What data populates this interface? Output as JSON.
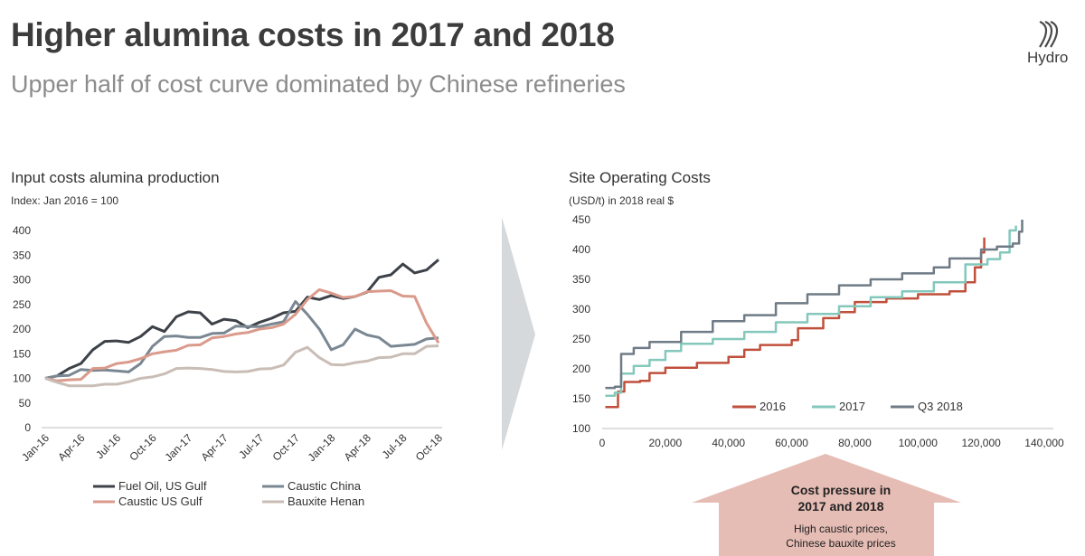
{
  "header": {
    "title": "Higher alumina costs in 2017 and 2018",
    "subtitle": "Upper half of cost curve dominated by Chinese refineries",
    "logo_text": "Hydro"
  },
  "left_chart": {
    "title": "Input costs alumina production",
    "subtitle": "Index: Jan 2016 = 100"
  },
  "right_chart": {
    "title": "Site Operating Costs",
    "subtitle": "(USD/t) in 2018 real $"
  },
  "callout": {
    "heading_line1": "Cost pressure in",
    "heading_line2": "2017 and 2018",
    "body_line1": "High caustic prices,",
    "body_line2": "Chinese bauxite prices",
    "color": "#e6bdb5"
  },
  "chart_data": [
    {
      "type": "line",
      "title": "Input costs alumina production",
      "subtitle": "Index: Jan 2016 = 100",
      "ylim": [
        0,
        400
      ],
      "yticks": [
        0,
        50,
        100,
        150,
        200,
        250,
        300,
        350,
        400
      ],
      "x_count": 34,
      "x_tick_labels": [
        {
          "i": 0,
          "label": "Jan-16"
        },
        {
          "i": 3,
          "label": "Apr-16"
        },
        {
          "i": 6,
          "label": "Jul-16"
        },
        {
          "i": 9,
          "label": "Oct-16"
        },
        {
          "i": 12,
          "label": "Jan-17"
        },
        {
          "i": 15,
          "label": "Apr-17"
        },
        {
          "i": 18,
          "label": "Jul-17"
        },
        {
          "i": 21,
          "label": "Oct-17"
        },
        {
          "i": 24,
          "label": "Jan-18"
        },
        {
          "i": 27,
          "label": "Apr-18"
        },
        {
          "i": 30,
          "label": "Jul-18"
        },
        {
          "i": 33,
          "label": "Oct-18"
        }
      ],
      "legend_position": "bottom",
      "series": [
        {
          "name": "Fuel Oil, US Gulf",
          "color": "#3d4249",
          "values": [
            100,
            105,
            120,
            130,
            158,
            175,
            176,
            173,
            185,
            205,
            195,
            225,
            235,
            233,
            210,
            220,
            217,
            203,
            214,
            222,
            233,
            236,
            265,
            260,
            268,
            262,
            266,
            275,
            305,
            310,
            332,
            314,
            320,
            341
          ]
        },
        {
          "name": "Caustic China",
          "color": "#7a8792",
          "values": [
            100,
            105,
            106,
            118,
            116,
            117,
            115,
            113,
            130,
            165,
            185,
            186,
            183,
            183,
            191,
            192,
            206,
            205,
            205,
            210,
            215,
            256,
            230,
            200,
            158,
            168,
            200,
            188,
            183,
            165,
            167,
            169,
            180,
            182
          ]
        },
        {
          "name": "Caustic US Gulf",
          "color": "#da9a8c",
          "values": [
            100,
            95,
            97,
            98,
            120,
            121,
            130,
            133,
            140,
            150,
            154,
            157,
            167,
            168,
            182,
            185,
            190,
            193,
            200,
            203,
            210,
            230,
            260,
            280,
            273,
            264,
            266,
            276,
            277,
            278,
            267,
            266,
            212,
            172
          ]
        },
        {
          "name": "Bauxite Henan",
          "color": "#c9bdb6",
          "values": [
            100,
            92,
            85,
            85,
            85,
            88,
            88,
            93,
            100,
            103,
            109,
            120,
            121,
            120,
            118,
            114,
            113,
            114,
            119,
            120,
            127,
            153,
            163,
            142,
            128,
            127,
            132,
            135,
            142,
            143,
            150,
            150,
            165,
            166
          ]
        }
      ]
    },
    {
      "type": "line",
      "title": "Site Operating Costs",
      "subtitle": "(USD/t) in 2018 real $",
      "xlim": [
        0,
        140000
      ],
      "xticks": [
        0,
        20000,
        40000,
        60000,
        80000,
        100000,
        120000,
        140000
      ],
      "ylim": [
        100,
        450
      ],
      "yticks": [
        100,
        150,
        200,
        250,
        300,
        350,
        400,
        450
      ],
      "legend_position": "bottom-center",
      "series": [
        {
          "name": "2016",
          "color": "#c0503c",
          "points": [
            [
              1000,
              136
            ],
            [
              5000,
              162
            ],
            [
              7000,
              178
            ],
            [
              12000,
              180
            ],
            [
              15000,
              193
            ],
            [
              20000,
              202
            ],
            [
              30000,
              210
            ],
            [
              40000,
              220
            ],
            [
              45000,
              232
            ],
            [
              50000,
              240
            ],
            [
              60000,
              248
            ],
            [
              62000,
              268
            ],
            [
              70000,
              285
            ],
            [
              75000,
              295
            ],
            [
              80000,
              312
            ],
            [
              90000,
              318
            ],
            [
              100000,
              325
            ],
            [
              110000,
              330
            ],
            [
              115000,
              345
            ],
            [
              118000,
              370
            ],
            [
              120000,
              395
            ],
            [
              121000,
              420
            ]
          ]
        },
        {
          "name": "2017",
          "color": "#84c8bc",
          "points": [
            [
              1000,
              155
            ],
            [
              4000,
              160
            ],
            [
              6000,
              192
            ],
            [
              10000,
              205
            ],
            [
              15000,
              215
            ],
            [
              20000,
              230
            ],
            [
              25000,
              242
            ],
            [
              35000,
              250
            ],
            [
              45000,
              262
            ],
            [
              55000,
              278
            ],
            [
              65000,
              292
            ],
            [
              75000,
              305
            ],
            [
              85000,
              320
            ],
            [
              95000,
              330
            ],
            [
              105000,
              345
            ],
            [
              115000,
              375
            ],
            [
              122000,
              384
            ],
            [
              126000,
              395
            ],
            [
              129000,
              432
            ],
            [
              131000,
              440
            ]
          ]
        },
        {
          "name": "Q3 2018",
          "color": "#6f7b86",
          "points": [
            [
              1000,
              168
            ],
            [
              4000,
              170
            ],
            [
              6000,
              225
            ],
            [
              10000,
              235
            ],
            [
              15000,
              245
            ],
            [
              25000,
              262
            ],
            [
              35000,
              280
            ],
            [
              45000,
              290
            ],
            [
              55000,
              310
            ],
            [
              65000,
              325
            ],
            [
              75000,
              340
            ],
            [
              85000,
              350
            ],
            [
              95000,
              360
            ],
            [
              105000,
              370
            ],
            [
              110000,
              385
            ],
            [
              120000,
              400
            ],
            [
              125000,
              405
            ],
            [
              130000,
              410
            ],
            [
              132000,
              430
            ],
            [
              133000,
              450
            ]
          ]
        }
      ]
    }
  ]
}
